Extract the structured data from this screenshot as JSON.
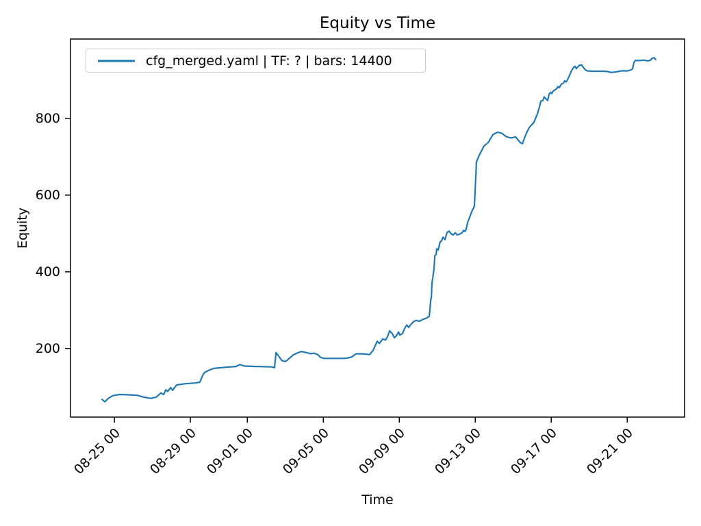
{
  "chart_data": {
    "type": "line",
    "title": "Equity vs Time",
    "xlabel": "Time",
    "ylabel": "Equity",
    "legend": [
      "cfg_merged.yaml | TF: ? | bars: 14400"
    ],
    "legend_position": "upper left",
    "grid": false,
    "line_color": "#1f77b4",
    "legend_border_color": "#cccccc",
    "axis_color": "#000000",
    "x_unit": "days, 0 = tick 08-25 00",
    "xlim": [
      -2.31,
      30.02
    ],
    "ylim": [
      21,
      1007
    ],
    "y_ticks": [
      200,
      400,
      600,
      800
    ],
    "x_ticks": [
      {
        "x": 0,
        "label": "08-25 00"
      },
      {
        "x": 4,
        "label": "08-29 00"
      },
      {
        "x": 7,
        "label": "09-01 00"
      },
      {
        "x": 11,
        "label": "09-05 00"
      },
      {
        "x": 15,
        "label": "09-09 00"
      },
      {
        "x": 19,
        "label": "09-13 00"
      },
      {
        "x": 23,
        "label": "09-17 00"
      },
      {
        "x": 27,
        "label": "09-21 00"
      }
    ],
    "series": [
      {
        "name": "cfg_merged.yaml | TF: ? | bars: 14400",
        "color": "#1f77b4",
        "points": [
          [
            -0.65,
            67
          ],
          [
            -0.5,
            61
          ],
          [
            -0.32,
            70
          ],
          [
            -0.07,
            77
          ],
          [
            0.29,
            80
          ],
          [
            0.76,
            79
          ],
          [
            1.19,
            78
          ],
          [
            1.55,
            73
          ],
          [
            1.91,
            70
          ],
          [
            2.2,
            73
          ],
          [
            2.45,
            84
          ],
          [
            2.6,
            80
          ],
          [
            2.7,
            92
          ],
          [
            2.81,
            88
          ],
          [
            2.96,
            98
          ],
          [
            3.06,
            91
          ],
          [
            3.28,
            105
          ],
          [
            3.71,
            108
          ],
          [
            4.25,
            110
          ],
          [
            4.5,
            112
          ],
          [
            4.65,
            130
          ],
          [
            4.76,
            138
          ],
          [
            4.97,
            143
          ],
          [
            5.23,
            148
          ],
          [
            5.87,
            151
          ],
          [
            6.41,
            153
          ],
          [
            6.6,
            158
          ],
          [
            6.85,
            154
          ],
          [
            7.5,
            153
          ],
          [
            8.29,
            152
          ],
          [
            8.43,
            150
          ],
          [
            8.51,
            189
          ],
          [
            8.65,
            180
          ],
          [
            8.83,
            168
          ],
          [
            9.01,
            166
          ],
          [
            9.23,
            175
          ],
          [
            9.41,
            183
          ],
          [
            9.62,
            188
          ],
          [
            9.84,
            192
          ],
          [
            10.13,
            189
          ],
          [
            10.34,
            186
          ],
          [
            10.49,
            188
          ],
          [
            10.7,
            184
          ],
          [
            10.85,
            177
          ],
          [
            11.03,
            174
          ],
          [
            12.0,
            174
          ],
          [
            12.29,
            175
          ],
          [
            12.5,
            178
          ],
          [
            12.72,
            186
          ],
          [
            13.08,
            186
          ],
          [
            13.44,
            184
          ],
          [
            13.62,
            195
          ],
          [
            13.73,
            207
          ],
          [
            13.84,
            219
          ],
          [
            13.95,
            213
          ],
          [
            14.13,
            225
          ],
          [
            14.27,
            222
          ],
          [
            14.38,
            231
          ],
          [
            14.49,
            246
          ],
          [
            14.63,
            239
          ],
          [
            14.74,
            228
          ],
          [
            14.85,
            233
          ],
          [
            14.96,
            243
          ],
          [
            15.03,
            235
          ],
          [
            15.17,
            239
          ],
          [
            15.28,
            252
          ],
          [
            15.39,
            261
          ],
          [
            15.5,
            255
          ],
          [
            15.6,
            262
          ],
          [
            15.75,
            270
          ],
          [
            15.89,
            273
          ],
          [
            16.07,
            271
          ],
          [
            16.25,
            276
          ],
          [
            16.43,
            279
          ],
          [
            16.58,
            284
          ],
          [
            16.65,
            323
          ],
          [
            16.69,
            335
          ],
          [
            16.72,
            371
          ],
          [
            16.76,
            383
          ],
          [
            16.83,
            408
          ],
          [
            16.87,
            442
          ],
          [
            16.94,
            445
          ],
          [
            16.97,
            460
          ],
          [
            17.05,
            457
          ],
          [
            17.15,
            478
          ],
          [
            17.23,
            481
          ],
          [
            17.3,
            490
          ],
          [
            17.41,
            484
          ],
          [
            17.51,
            502
          ],
          [
            17.62,
            506
          ],
          [
            17.73,
            499
          ],
          [
            17.84,
            496
          ],
          [
            17.95,
            502
          ],
          [
            18.05,
            496
          ],
          [
            18.2,
            499
          ],
          [
            18.31,
            502
          ],
          [
            18.38,
            508
          ],
          [
            18.45,
            505
          ],
          [
            18.52,
            511
          ],
          [
            18.6,
            529
          ],
          [
            18.67,
            538
          ],
          [
            18.78,
            552
          ],
          [
            18.85,
            561
          ],
          [
            18.92,
            567
          ],
          [
            18.96,
            573
          ],
          [
            18.99,
            610
          ],
          [
            19.03,
            650
          ],
          [
            19.06,
            686
          ],
          [
            19.21,
            704
          ],
          [
            19.46,
            728
          ],
          [
            19.68,
            737
          ],
          [
            19.93,
            758
          ],
          [
            20.18,
            764
          ],
          [
            20.4,
            761
          ],
          [
            20.65,
            752
          ],
          [
            20.9,
            749
          ],
          [
            21.12,
            752
          ],
          [
            21.37,
            737
          ],
          [
            21.48,
            734
          ],
          [
            21.66,
            758
          ],
          [
            21.84,
            776
          ],
          [
            22.09,
            790
          ],
          [
            22.27,
            812
          ],
          [
            22.38,
            830
          ],
          [
            22.45,
            845
          ],
          [
            22.56,
            847
          ],
          [
            22.63,
            856
          ],
          [
            22.74,
            850
          ],
          [
            22.81,
            847
          ],
          [
            22.88,
            862
          ],
          [
            22.96,
            868
          ],
          [
            23.03,
            865
          ],
          [
            23.1,
            871
          ],
          [
            23.17,
            874
          ],
          [
            23.28,
            877
          ],
          [
            23.35,
            883
          ],
          [
            23.42,
            880
          ],
          [
            23.53,
            889
          ],
          [
            23.64,
            892
          ],
          [
            23.71,
            898
          ],
          [
            23.78,
            895
          ],
          [
            23.86,
            901
          ],
          [
            23.96,
            912
          ],
          [
            24.04,
            921
          ],
          [
            24.11,
            928
          ],
          [
            24.18,
            933
          ],
          [
            24.25,
            936
          ],
          [
            24.32,
            930
          ],
          [
            24.43,
            936
          ],
          [
            24.5,
            939
          ],
          [
            24.61,
            939
          ],
          [
            24.69,
            933
          ],
          [
            24.79,
            927
          ],
          [
            24.9,
            924
          ],
          [
            25.15,
            923
          ],
          [
            25.51,
            923
          ],
          [
            25.87,
            923
          ],
          [
            26.16,
            920
          ],
          [
            26.41,
            921
          ],
          [
            26.67,
            924
          ],
          [
            26.88,
            924
          ],
          [
            27.03,
            924
          ],
          [
            27.17,
            926
          ],
          [
            27.28,
            929
          ],
          [
            27.35,
            945
          ],
          [
            27.42,
            951
          ],
          [
            27.64,
            951
          ],
          [
            27.86,
            952
          ],
          [
            28.11,
            950
          ],
          [
            28.22,
            952
          ],
          [
            28.32,
            957
          ],
          [
            28.43,
            958
          ],
          [
            28.5,
            953
          ]
        ]
      }
    ]
  }
}
